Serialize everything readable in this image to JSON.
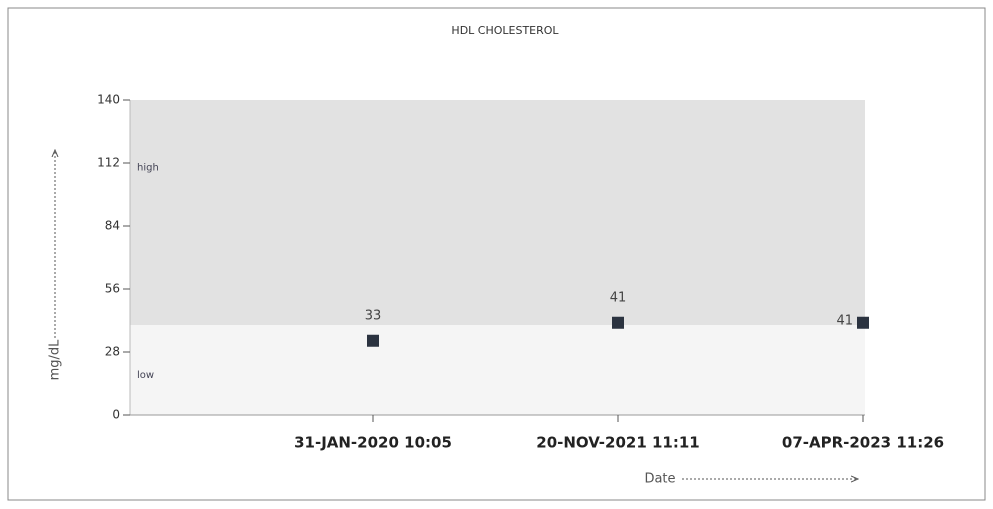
{
  "chart_data": {
    "type": "scatter",
    "title": "HDL CHOLESTEROL",
    "y_label": "mg/dL",
    "x_label": "Date",
    "categories": [
      "31-JAN-2020 10:05",
      "20-NOV-2021 11:11",
      "07-APR-2023 11:26"
    ],
    "values": [
      33,
      41,
      41
    ],
    "color": "#2b3340",
    "ylim": [
      0,
      140
    ],
    "yticks": [
      0,
      28,
      56,
      84,
      112,
      140
    ],
    "bands": [
      {
        "label": "high",
        "from": 40,
        "to": 140,
        "color": "#e2e2e2"
      },
      {
        "label": "low",
        "from": 0,
        "to": 40,
        "color": "#f5f5f5"
      }
    ]
  }
}
